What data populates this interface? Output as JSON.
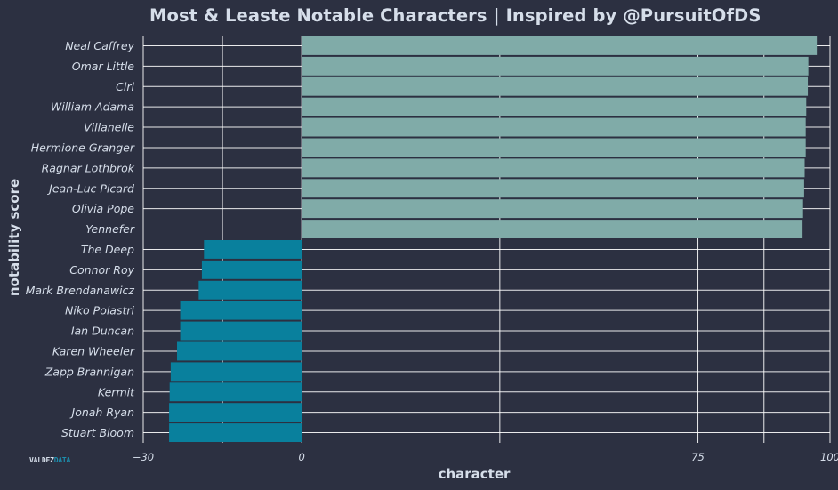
{
  "chart_data": {
    "type": "bar",
    "orientation": "horizontal",
    "title": "Most & Leaste Notable Characters | Inspired by @PursuitOfDS",
    "xlabel": "character",
    "ylabel": "notability score",
    "xlim": [
      -30,
      100
    ],
    "xticks": [
      -30,
      0,
      75,
      100
    ],
    "xtick_labels": [
      "−30",
      "0",
      "75",
      "100"
    ],
    "grid": true,
    "categories": [
      "Neal Caffrey",
      "Omar Little",
      "Ciri",
      "William Adama",
      "Villanelle",
      "Hermione Granger",
      "Ragnar Lothbrok",
      "Jean-Luc Picard",
      "Olivia Pope",
      "Yennefer",
      "The Deep",
      "Connor Roy",
      "Mark Brendanawicz",
      "Niko Polastri",
      "Ian Duncan",
      "Karen Wheeler",
      "Zapp Brannigan",
      "Kermit",
      "Jonah Ryan",
      "Stuart Bloom"
    ],
    "values": [
      97.5,
      95.9,
      95.8,
      95.5,
      95.4,
      95.4,
      95.2,
      95.1,
      94.9,
      94.8,
      -18.5,
      -18.9,
      -19.5,
      -23.0,
      -23.0,
      -23.6,
      -24.8,
      -25.0,
      -25.1,
      -25.1
    ],
    "colors": {
      "positive": "#80aba8",
      "negative": "#09809d"
    }
  },
  "watermark": {
    "part1": "VALDEZ",
    "part2": "DATA"
  },
  "style": {
    "background": "#2c3041",
    "grid_color": "#ffffff",
    "text_color": "#d6deea"
  }
}
